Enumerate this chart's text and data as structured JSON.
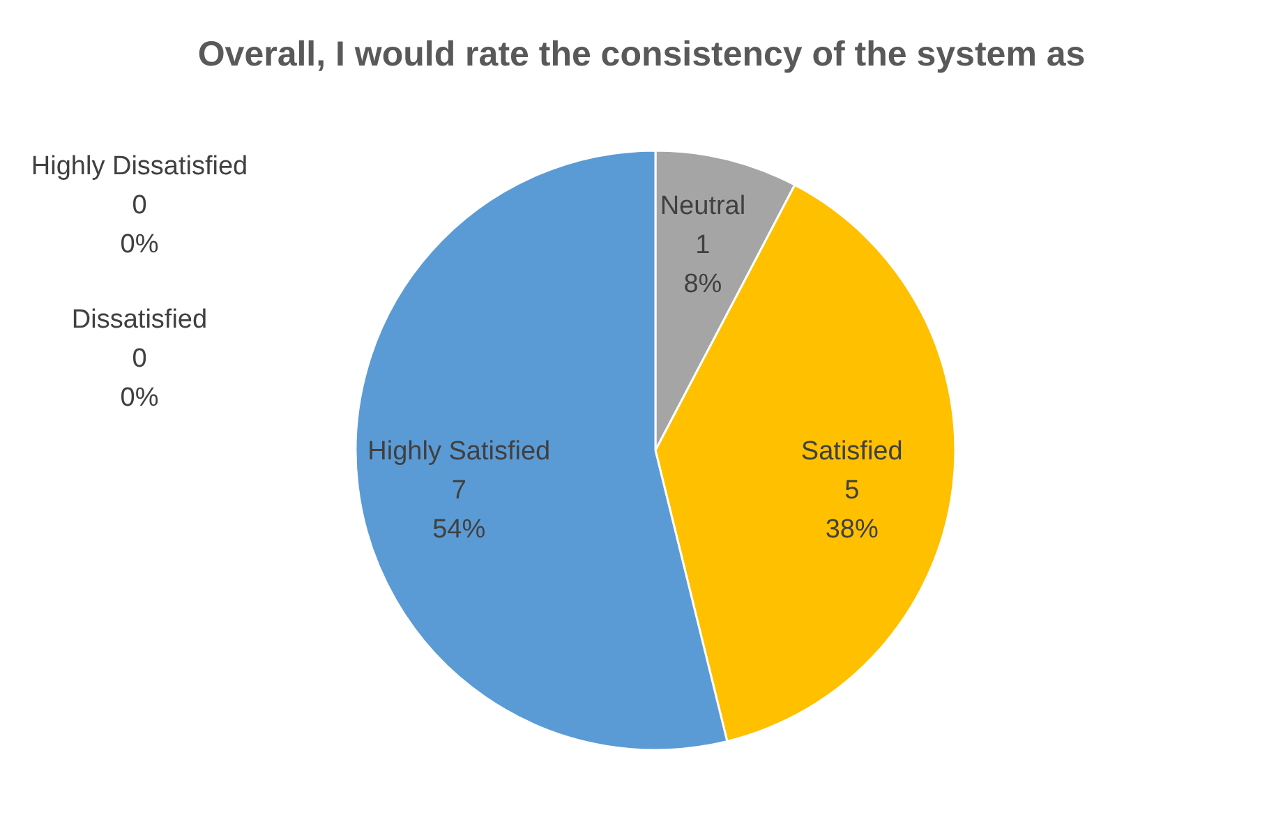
{
  "chart_data": {
    "type": "pie",
    "title": "Overall, I would rate the consistency of the system as",
    "categories": [
      "Highly Dissatisfied",
      "Dissatisfied",
      "Neutral",
      "Satisfied",
      "Highly Satisfied"
    ],
    "values": [
      0,
      0,
      1,
      5,
      7
    ],
    "colors": [
      "#4472c4",
      "#ed7d31",
      "#a5a5a5",
      "#ffc000",
      "#5b9bd5"
    ],
    "value_labels": [
      "0\n0%",
      "0\n0%",
      "1\n8%",
      "5\n38%",
      "7\n54%"
    ]
  }
}
